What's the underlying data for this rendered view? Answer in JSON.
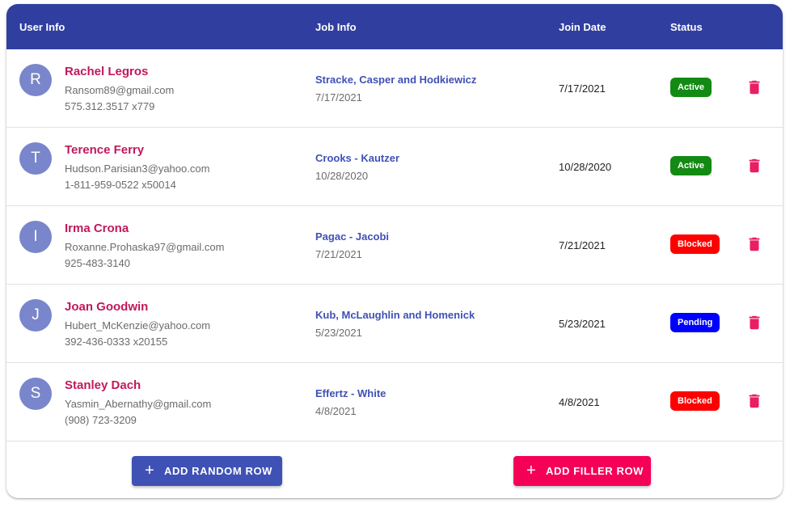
{
  "table": {
    "headers": {
      "user_info": "User Info",
      "job_info": "Job Info",
      "join_date": "Join Date",
      "status": "Status"
    },
    "rows": [
      {
        "initial": "R",
        "name": "Rachel Legros",
        "email": "Ransom89@gmail.com",
        "phone": "575.312.3517 x779",
        "company": "Stracke, Casper and Hodkiewicz",
        "job_date": "7/17/2021",
        "join_date": "7/17/2021",
        "status": "Active",
        "status_color": "#138a13"
      },
      {
        "initial": "T",
        "name": "Terence Ferry",
        "email": "Hudson.Parisian3@yahoo.com",
        "phone": "1-811-959-0522 x50014",
        "company": "Crooks - Kautzer",
        "job_date": "10/28/2020",
        "join_date": "10/28/2020",
        "status": "Active",
        "status_color": "#138a13"
      },
      {
        "initial": "I",
        "name": "Irma Crona",
        "email": "Roxanne.Prohaska97@gmail.com",
        "phone": "925-483-3140",
        "company": "Pagac - Jacobi",
        "job_date": "7/21/2021",
        "join_date": "7/21/2021",
        "status": "Blocked",
        "status_color": "#ff0000"
      },
      {
        "initial": "J",
        "name": "Joan Goodwin",
        "email": "Hubert_McKenzie@yahoo.com",
        "phone": "392-436-0333 x20155",
        "company": "Kub, McLaughlin and Homenick",
        "job_date": "5/23/2021",
        "join_date": "5/23/2021",
        "status": "Pending",
        "status_color": "#0000ff"
      },
      {
        "initial": "S",
        "name": "Stanley Dach",
        "email": "Yasmin_Abernathy@gmail.com",
        "phone": "(908) 723-3209",
        "company": "Effertz - White",
        "job_date": "4/8/2021",
        "join_date": "4/8/2021",
        "status": "Blocked",
        "status_color": "#ff0000"
      }
    ]
  },
  "actions": {
    "add_random_label": "ADD RANDOM ROW",
    "add_filler_label": "ADD FILLER ROW",
    "plus_icon": "plus-icon",
    "delete_icon": "trash-icon",
    "delete_color": "#e91e63"
  },
  "colors": {
    "header_bg": "#303f9f",
    "primary": "#3f51b5",
    "secondary": "#f50057",
    "name": "#c2185b",
    "avatar": "#7986cb"
  }
}
